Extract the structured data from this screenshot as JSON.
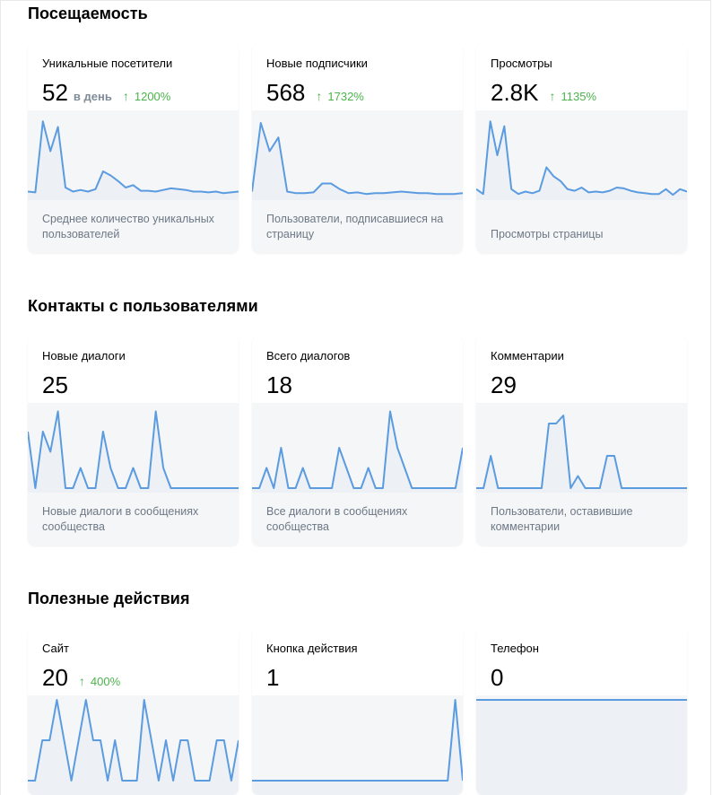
{
  "sections": [
    {
      "title": "Посещаемость",
      "cards": [
        {
          "label": "Уникальные посетители",
          "value": "52",
          "unit": "в день",
          "delta": "1200%",
          "description": "Среднее количество уникальных пользователей",
          "series": [
            0.05,
            0.04,
            0.92,
            0.55,
            0.85,
            0.1,
            0.05,
            0.07,
            0.05,
            0.08,
            0.3,
            0.25,
            0.18,
            0.1,
            0.13,
            0.06,
            0.06,
            0.05,
            0.07,
            0.09,
            0.08,
            0.07,
            0.05,
            0.05,
            0.04,
            0.05,
            0.03,
            0.04,
            0.05
          ]
        },
        {
          "label": "Новые подписчики",
          "value": "568",
          "delta": "1732%",
          "description": "Пользователи, подписавшиеся на страницу",
          "series": [
            0.05,
            0.9,
            0.55,
            0.72,
            0.05,
            0.03,
            0.03,
            0.04,
            0.15,
            0.15,
            0.08,
            0.03,
            0.04,
            0.02,
            0.03,
            0.03,
            0.04,
            0.05,
            0.04,
            0.03,
            0.03,
            0.02,
            0.02,
            0.02,
            0.03
          ]
        },
        {
          "label": "Просмотры",
          "value": "2.8K",
          "delta": "1135%",
          "description": "Просмотры страницы",
          "series": [
            0.08,
            0.02,
            0.92,
            0.5,
            0.86,
            0.08,
            0.02,
            0.05,
            0.03,
            0.06,
            0.35,
            0.24,
            0.18,
            0.08,
            0.06,
            0.1,
            0.04,
            0.05,
            0.04,
            0.06,
            0.1,
            0.09,
            0.06,
            0.04,
            0.03,
            0.02,
            0.02,
            0.08,
            0.01,
            0.08,
            0.05
          ]
        }
      ]
    },
    {
      "title": "Контакты с пользователями",
      "cards": [
        {
          "label": "Новые диалоги",
          "value": "25",
          "description": "Новые диалоги в сообщениях сообщества",
          "series": [
            0.7,
            0,
            0.7,
            0.45,
            0.95,
            0,
            0,
            0.25,
            0,
            0,
            0.7,
            0.25,
            0,
            0,
            0.25,
            0,
            0,
            0.95,
            0.25,
            0,
            0,
            0,
            0,
            0,
            0,
            0,
            0,
            0,
            0
          ]
        },
        {
          "label": "Всего диалогов",
          "value": "18",
          "description": "Все диалоги в сообщениях сообщества",
          "series": [
            0,
            0,
            0.25,
            0,
            0.5,
            0,
            0,
            0.25,
            0,
            0,
            0,
            0,
            0.5,
            0.25,
            0,
            0,
            0.25,
            0,
            0,
            0.95,
            0.5,
            0.25,
            0,
            0,
            0,
            0,
            0,
            0,
            0,
            0.5
          ]
        },
        {
          "label": "Комментарии",
          "value": "29",
          "description": "Пользователи, оставившие комментарии",
          "series": [
            0,
            0,
            0.4,
            0,
            0,
            0,
            0,
            0,
            0,
            0,
            0.8,
            0.8,
            0.9,
            0,
            0.15,
            0,
            0,
            0,
            0.4,
            0.4,
            0,
            0,
            0,
            0,
            0,
            0,
            0,
            0,
            0,
            0
          ]
        }
      ]
    },
    {
      "title": "Полезные действия",
      "cards": [
        {
          "label": "Сайт",
          "value": "20",
          "delta": "400%",
          "series": [
            0,
            0,
            0.5,
            0.5,
            1,
            0.5,
            0,
            0.5,
            1,
            0.5,
            0.5,
            0,
            0.5,
            0,
            0,
            0,
            1,
            0.5,
            0,
            0.5,
            0,
            0.5,
            0.5,
            0,
            0,
            0,
            0.5,
            0.5,
            0,
            0.5
          ]
        },
        {
          "label": "Кнопка действия",
          "value": "1",
          "series": [
            0,
            0,
            0,
            0,
            0,
            0,
            0,
            0,
            0,
            0,
            0,
            0,
            0,
            0,
            0,
            0,
            0,
            0,
            0,
            0,
            0,
            0,
            0,
            0,
            0,
            0,
            0,
            1,
            0
          ]
        },
        {
          "label": "Телефон",
          "value": "0",
          "series": [
            1,
            1,
            1,
            1,
            1,
            1,
            1,
            1,
            1,
            1,
            1,
            1,
            1,
            1,
            1,
            1,
            1,
            1,
            1,
            1
          ]
        }
      ]
    }
  ]
}
